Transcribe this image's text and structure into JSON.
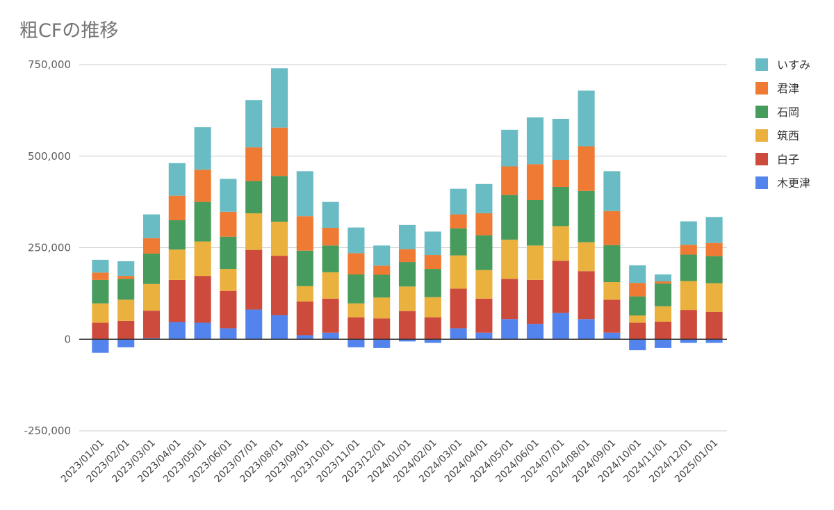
{
  "chart_data": {
    "type": "bar",
    "stacked": true,
    "title": "粗CFの推移",
    "xlabel": "",
    "ylabel": "",
    "ylim": [
      -250000,
      750000
    ],
    "yticks": [
      -250000,
      0,
      250000,
      500000,
      750000
    ],
    "ytick_labels": [
      "-250,000",
      "0",
      "250,000",
      "500,000",
      "750,000"
    ],
    "grid": true,
    "legend_position": "right",
    "categories": [
      "2023/01/01",
      "2023/02/01",
      "2023/03/01",
      "2023/04/01",
      "2023/05/01",
      "2023/06/01",
      "2023/07/01",
      "2023/08/01",
      "2023/09/01",
      "2023/10/01",
      "2023/11/01",
      "2023/12/01",
      "2024/01/01",
      "2024/02/01",
      "2024/03/01",
      "2024/04/01",
      "2024/05/01",
      "2024/06/01",
      "2024/07/01",
      "2024/08/01",
      "2024/09/01",
      "2024/10/01",
      "2024/11/01",
      "2024/12/01",
      "2025/01/01"
    ],
    "series": [
      {
        "name": "木更津",
        "color": "#5384ed",
        "values": [
          -37000,
          -22000,
          3000,
          47000,
          45000,
          30000,
          81000,
          66000,
          11000,
          18000,
          -22000,
          -24000,
          -6000,
          -10000,
          30000,
          18000,
          55000,
          42000,
          72000,
          55000,
          18000,
          -30000,
          -24000,
          -10000,
          -10000
        ]
      },
      {
        "name": "白子",
        "color": "#cc4b3d",
        "values": [
          45000,
          50000,
          75000,
          115000,
          128000,
          102000,
          163000,
          162000,
          92000,
          93000,
          60000,
          57000,
          77000,
          60000,
          108000,
          93000,
          110000,
          120000,
          142000,
          131000,
          90000,
          45000,
          48000,
          80000,
          75000
        ]
      },
      {
        "name": "筑西",
        "color": "#ebb13e",
        "values": [
          53000,
          58000,
          73000,
          83000,
          94000,
          60000,
          100000,
          93000,
          42000,
          72000,
          38000,
          57000,
          67000,
          55000,
          91000,
          78000,
          107000,
          94000,
          95000,
          79000,
          48000,
          20000,
          42000,
          79000,
          78000
        ]
      },
      {
        "name": "石岡",
        "color": "#469b5d",
        "values": [
          64000,
          57000,
          83000,
          80000,
          108000,
          88000,
          88000,
          125000,
          97000,
          73000,
          79000,
          62000,
          67000,
          77000,
          74000,
          95000,
          122000,
          124000,
          107000,
          140000,
          101000,
          52000,
          62000,
          72000,
          74000
        ]
      },
      {
        "name": "君津",
        "color": "#ee7a33",
        "values": [
          20000,
          8000,
          42000,
          67000,
          88000,
          68000,
          92000,
          132000,
          94000,
          48000,
          58000,
          25000,
          35000,
          38000,
          38000,
          60000,
          78000,
          98000,
          74000,
          122000,
          93000,
          37000,
          6000,
          27000,
          36000
        ]
      },
      {
        "name": "いすみ",
        "color": "#6abcc4",
        "values": [
          35000,
          40000,
          65000,
          89000,
          116000,
          90000,
          129000,
          162000,
          123000,
          71000,
          70000,
          55000,
          66000,
          64000,
          70000,
          80000,
          100000,
          128000,
          112000,
          152000,
          109000,
          48000,
          19000,
          64000,
          71000
        ]
      }
    ]
  }
}
